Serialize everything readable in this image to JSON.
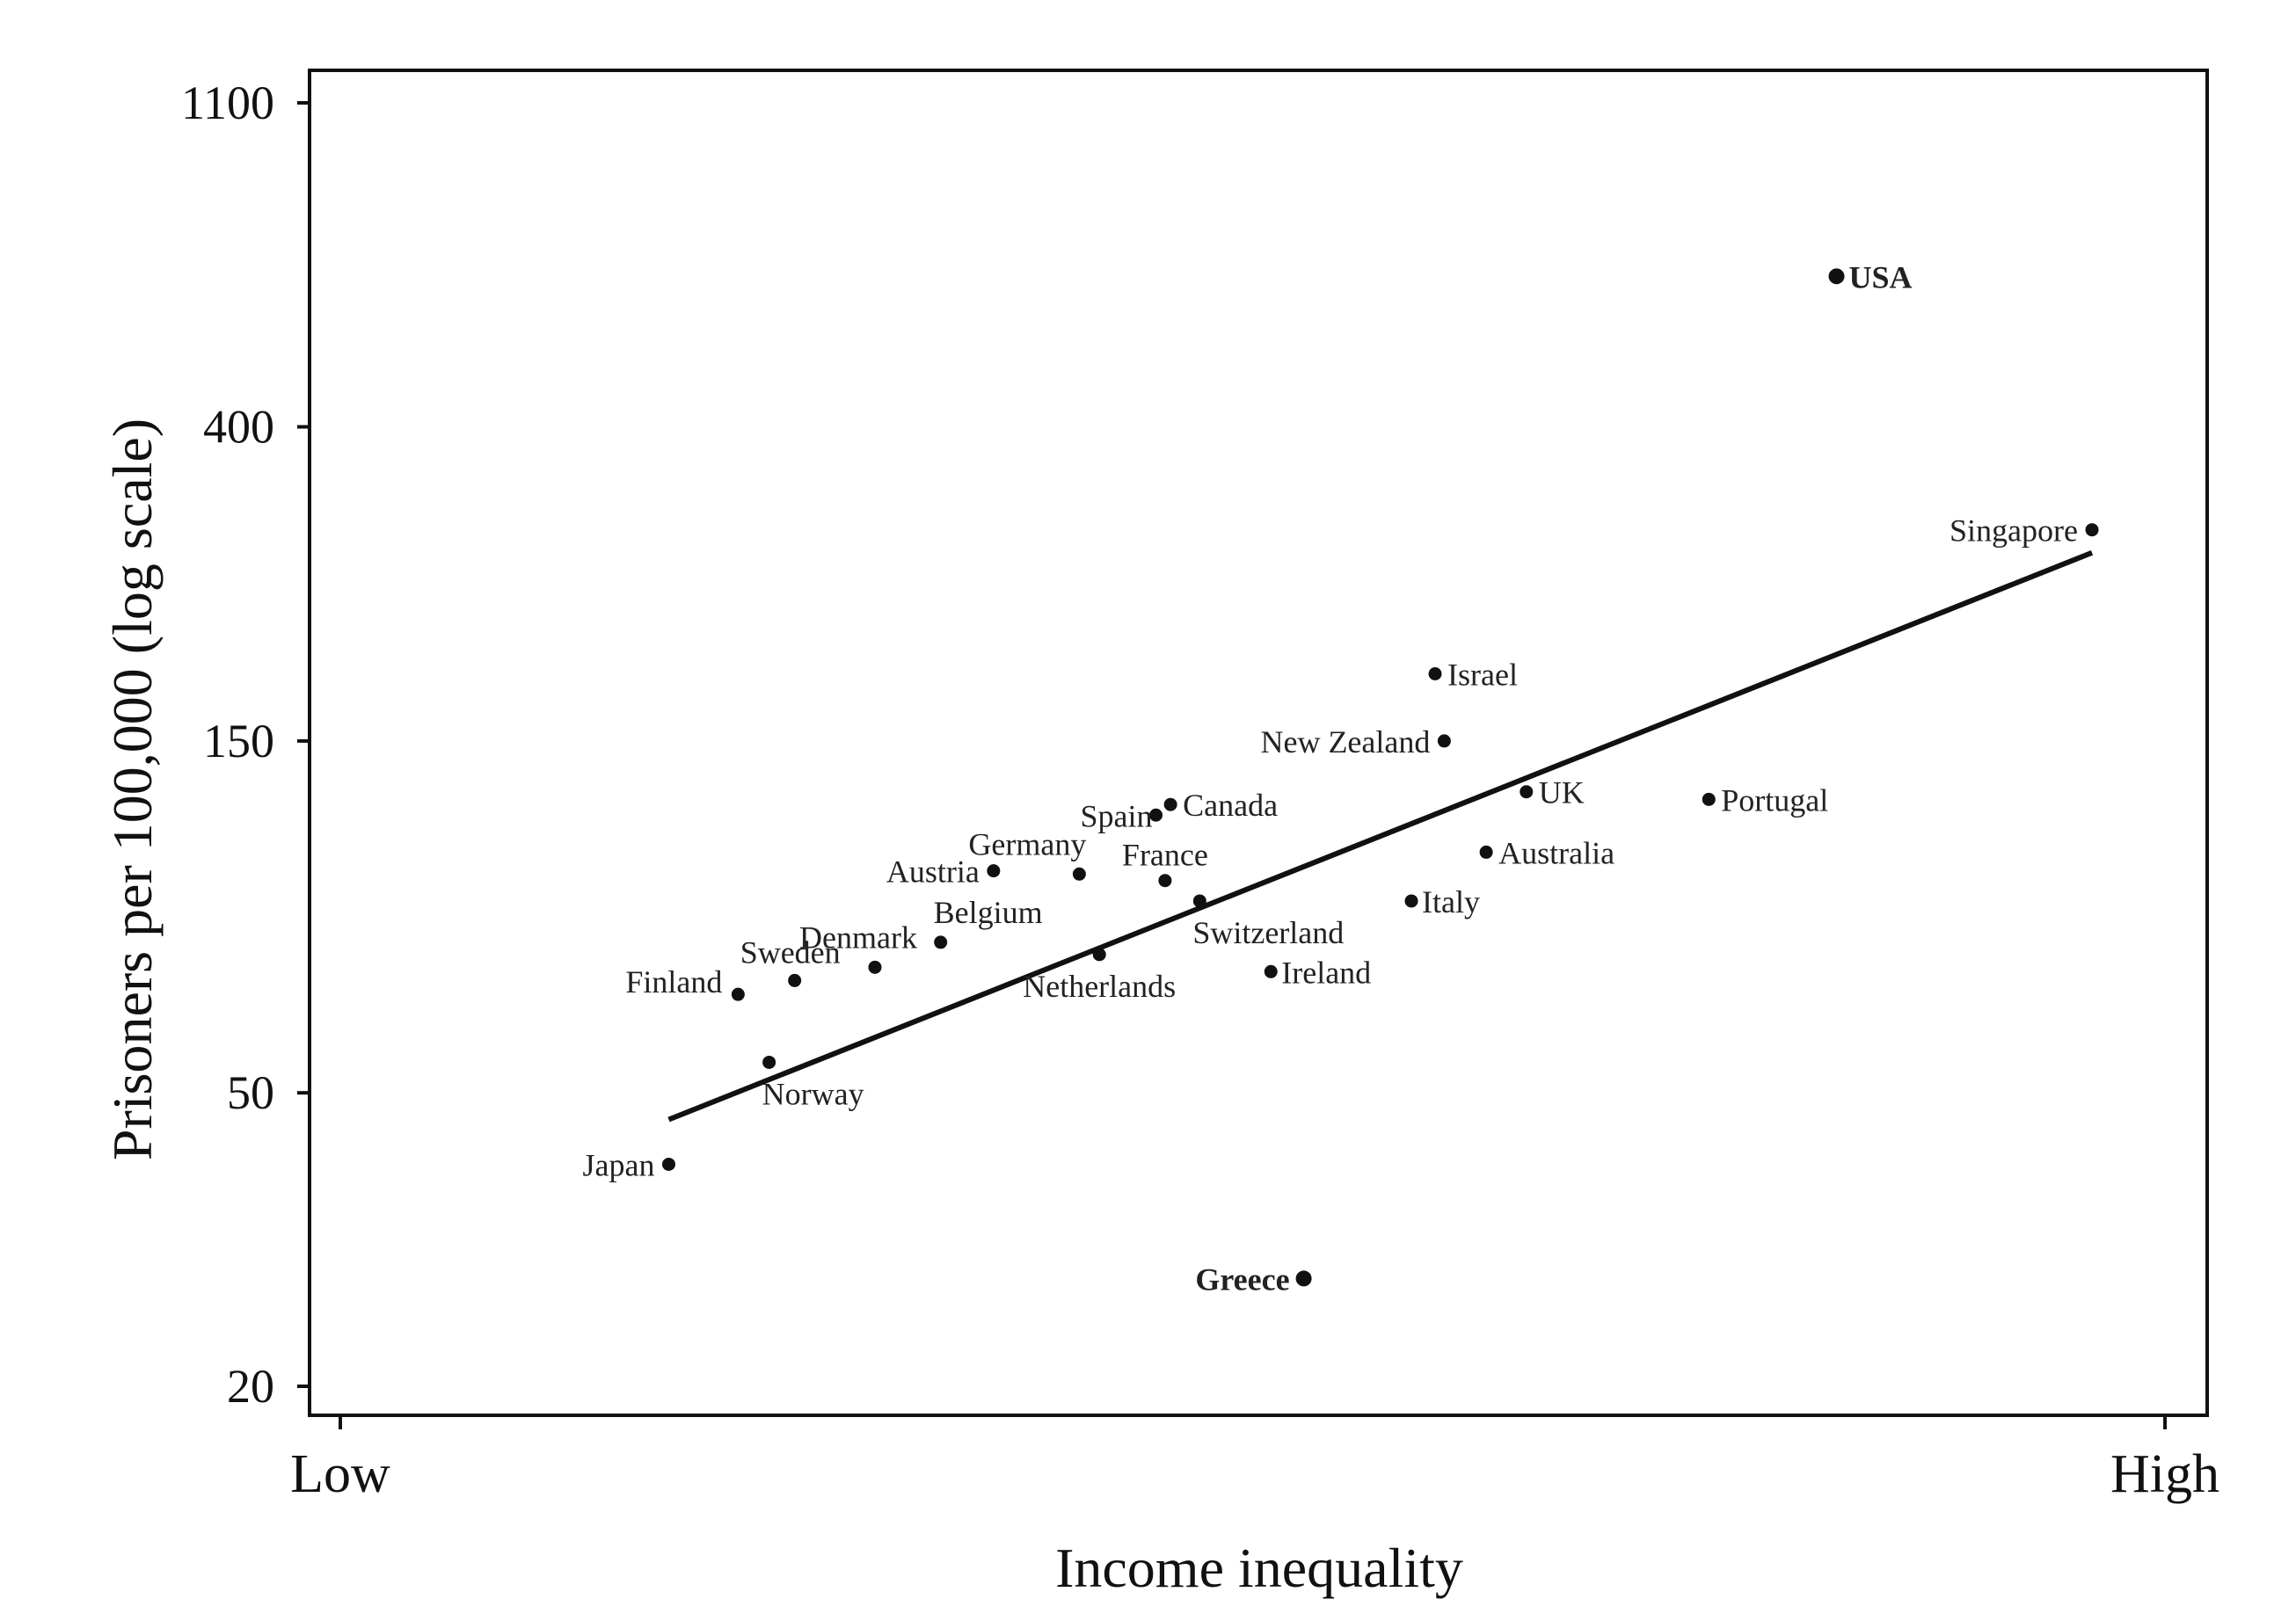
{
  "chart_data": {
    "type": "scatter",
    "title": "",
    "xlabel": "Income inequality",
    "ylabel": "Prisoners per 100,000 (log scale)",
    "y_scale": "log",
    "ylim": [
      20,
      1100
    ],
    "y_ticks": [
      20,
      50,
      150,
      400,
      1100
    ],
    "y_tick_labels": [
      "20",
      "50",
      "150",
      "400",
      "1100"
    ],
    "x_ticks": [
      "Low",
      "High"
    ],
    "xlim": [
      0,
      1
    ],
    "grid": false,
    "points": [
      {
        "label": "USA",
        "x": 0.82,
        "y": 640,
        "bold": true
      },
      {
        "label": "Singapore",
        "x": 0.96,
        "y": 290
      },
      {
        "label": "Israel",
        "x": 0.6,
        "y": 185
      },
      {
        "label": "New Zealand",
        "x": 0.605,
        "y": 150
      },
      {
        "label": "UK",
        "x": 0.65,
        "y": 128
      },
      {
        "label": "Portugal",
        "x": 0.75,
        "y": 125
      },
      {
        "label": "Canada",
        "x": 0.455,
        "y": 123
      },
      {
        "label": "Spain",
        "x": 0.447,
        "y": 119
      },
      {
        "label": "Australia",
        "x": 0.628,
        "y": 106
      },
      {
        "label": "Austria",
        "x": 0.358,
        "y": 100
      },
      {
        "label": "Germany",
        "x": 0.405,
        "y": 99
      },
      {
        "label": "France",
        "x": 0.452,
        "y": 97
      },
      {
        "label": "Switzerland",
        "x": 0.471,
        "y": 91
      },
      {
        "label": "Italy",
        "x": 0.587,
        "y": 91
      },
      {
        "label": "Belgium",
        "x": 0.329,
        "y": 80
      },
      {
        "label": "Netherlands",
        "x": 0.416,
        "y": 77
      },
      {
        "label": "Denmark",
        "x": 0.293,
        "y": 74
      },
      {
        "label": "Ireland",
        "x": 0.51,
        "y": 73
      },
      {
        "label": "Sweden",
        "x": 0.249,
        "y": 71
      },
      {
        "label": "Finland",
        "x": 0.218,
        "y": 68
      },
      {
        "label": "Norway",
        "x": 0.235,
        "y": 55
      },
      {
        "label": "Japan",
        "x": 0.18,
        "y": 40
      },
      {
        "label": "Greece",
        "x": 0.528,
        "y": 28,
        "bold": true
      }
    ],
    "trendline": {
      "x": [
        0.18,
        0.96
      ],
      "y": [
        46,
        270
      ]
    }
  }
}
